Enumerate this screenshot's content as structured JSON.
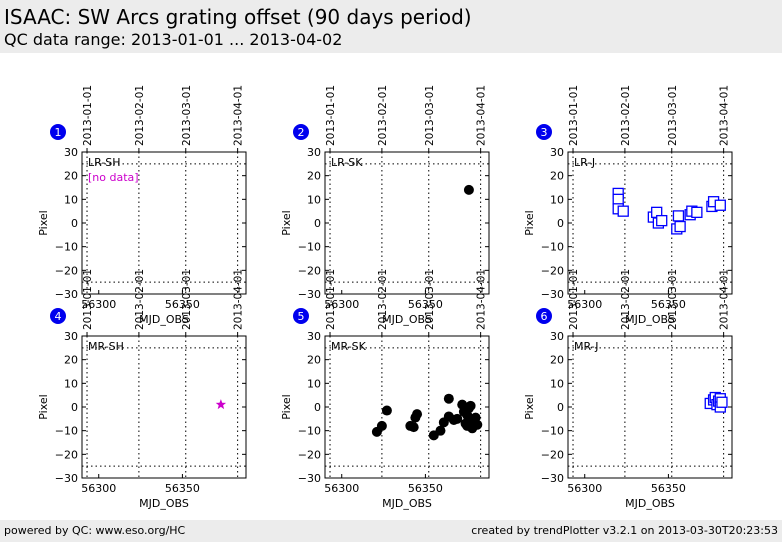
{
  "header": {
    "title": "ISAAC: SW Arcs grating offset (90 days period)",
    "subtitle": "QC data range: 2013-01-01 ... 2013-04-02"
  },
  "footer": {
    "left": "powered by QC: www.eso.org/HC",
    "right": "created by trendPlotter v3.2.1 on 2013-03-30T20:23:53"
  },
  "colors": {
    "black": "#000000",
    "blue": "#0000ff",
    "magenta": "#cc00cc",
    "badge": "#0000ee"
  },
  "chart_data": [
    {
      "type": "scatter",
      "panel_number": "1",
      "label": "LR-SH",
      "note": "[no data]",
      "xlabel": "MJD_OBS",
      "ylabel": "Pixel",
      "xlim": [
        56290,
        56388
      ],
      "ylim": [
        -30,
        30
      ],
      "xticks": [
        56300,
        56350
      ],
      "yticks": [
        -30,
        -20,
        -10,
        0,
        10,
        20,
        30
      ],
      "ref_lines": [
        -25,
        25
      ],
      "date_ticks": [
        {
          "x": 56293,
          "label": "2013-01-01"
        },
        {
          "x": 56324,
          "label": "2013-02-01"
        },
        {
          "x": 56352,
          "label": "2013-03-01"
        },
        {
          "x": 56383,
          "label": "2013-04-01"
        }
      ],
      "marker": "none",
      "points": []
    },
    {
      "type": "scatter",
      "panel_number": "2",
      "label": "LR-SK",
      "xlabel": "MJD_OBS",
      "ylabel": "Pixel",
      "xlim": [
        56290,
        56388
      ],
      "ylim": [
        -30,
        30
      ],
      "xticks": [
        56300,
        56350
      ],
      "yticks": [
        -30,
        -20,
        -10,
        0,
        10,
        20,
        30
      ],
      "ref_lines": [
        -25,
        25
      ],
      "date_ticks": [
        {
          "x": 56293,
          "label": "2013-01-01"
        },
        {
          "x": 56324,
          "label": "2013-02-01"
        },
        {
          "x": 56352,
          "label": "2013-03-01"
        },
        {
          "x": 56383,
          "label": "2013-04-01"
        }
      ],
      "marker": "circle",
      "color": "#000000",
      "points": [
        [
          56376,
          14
        ]
      ]
    },
    {
      "type": "scatter",
      "panel_number": "3",
      "label": "LR-J",
      "xlabel": "MJD_OBS",
      "ylabel": "Pixel",
      "xlim": [
        56290,
        56388
      ],
      "ylim": [
        -30,
        30
      ],
      "xticks": [
        56300,
        56350
      ],
      "yticks": [
        -30,
        -20,
        -10,
        0,
        10,
        20,
        30
      ],
      "ref_lines": [
        -25,
        25
      ],
      "date_ticks": [
        {
          "x": 56293,
          "label": "2013-01-01"
        },
        {
          "x": 56324,
          "label": "2013-02-01"
        },
        {
          "x": 56352,
          "label": "2013-03-01"
        },
        {
          "x": 56383,
          "label": "2013-04-01"
        }
      ],
      "marker": "square",
      "color": "#0000ff",
      "points": [
        [
          56320,
          12.5
        ],
        [
          56320,
          10
        ],
        [
          56320,
          6
        ],
        [
          56323,
          5
        ],
        [
          56341,
          2.5
        ],
        [
          56343,
          4.5
        ],
        [
          56344,
          0
        ],
        [
          56346,
          1
        ],
        [
          56355,
          -2.5
        ],
        [
          56356,
          3
        ],
        [
          56357,
          -1.5
        ],
        [
          56363,
          3.5
        ],
        [
          56364,
          5
        ],
        [
          56367,
          4.5
        ],
        [
          56376,
          7
        ],
        [
          56377,
          9
        ],
        [
          56381,
          7.5
        ]
      ]
    },
    {
      "type": "scatter",
      "panel_number": "4",
      "label": "MR-SH",
      "xlabel": "MJD_OBS",
      "ylabel": "Pixel",
      "xlim": [
        56290,
        56388
      ],
      "ylim": [
        -30,
        30
      ],
      "xticks": [
        56300,
        56350
      ],
      "yticks": [
        -30,
        -20,
        -10,
        0,
        10,
        20,
        30
      ],
      "ref_lines": [
        -25,
        25
      ],
      "date_ticks": [
        {
          "x": 56293,
          "label": "2013-01-01"
        },
        {
          "x": 56324,
          "label": "2013-02-01"
        },
        {
          "x": 56352,
          "label": "2013-03-01"
        },
        {
          "x": 56383,
          "label": "2013-04-01"
        }
      ],
      "marker": "star",
      "color": "#cc00cc",
      "points": [
        [
          56373,
          1
        ]
      ]
    },
    {
      "type": "scatter",
      "panel_number": "5",
      "label": "MR-SK",
      "xlabel": "MJD_OBS",
      "ylabel": "Pixel",
      "xlim": [
        56290,
        56388
      ],
      "ylim": [
        -30,
        30
      ],
      "xticks": [
        56300,
        56350
      ],
      "yticks": [
        -30,
        -20,
        -10,
        0,
        10,
        20,
        30
      ],
      "ref_lines": [
        -25,
        25
      ],
      "date_ticks": [
        {
          "x": 56293,
          "label": "2013-01-01"
        },
        {
          "x": 56324,
          "label": "2013-02-01"
        },
        {
          "x": 56352,
          "label": "2013-03-01"
        },
        {
          "x": 56383,
          "label": "2013-04-01"
        }
      ],
      "marker": "circle",
      "color": "#000000",
      "points": [
        [
          56321,
          -10.5
        ],
        [
          56324,
          -8
        ],
        [
          56327,
          -1.5
        ],
        [
          56341,
          -8
        ],
        [
          56343,
          -8.5
        ],
        [
          56344,
          -4.5
        ],
        [
          56345,
          -3
        ],
        [
          56355,
          -12
        ],
        [
          56359,
          -10
        ],
        [
          56361,
          -6.5
        ],
        [
          56364,
          3.5
        ],
        [
          56364,
          -4
        ],
        [
          56367,
          -5.5
        ],
        [
          56369,
          -5
        ],
        [
          56372,
          1
        ],
        [
          56373,
          -2
        ],
        [
          56374,
          -7
        ],
        [
          56375,
          -3.5
        ],
        [
          56376,
          -0.5
        ],
        [
          56377,
          -5
        ],
        [
          56378,
          -9
        ],
        [
          56379,
          -6
        ],
        [
          56380,
          -4.5
        ],
        [
          56381,
          -7.5
        ],
        [
          56375,
          -8
        ],
        [
          56377,
          0.5
        ]
      ]
    },
    {
      "type": "scatter",
      "panel_number": "6",
      "label": "MR-J",
      "xlabel": "MJD_OBS",
      "ylabel": "Pixel",
      "xlim": [
        56290,
        56388
      ],
      "ylim": [
        -30,
        30
      ],
      "xticks": [
        56300,
        56350
      ],
      "yticks": [
        -30,
        -20,
        -10,
        0,
        10,
        20,
        30
      ],
      "ref_lines": [
        -25,
        25
      ],
      "date_ticks": [
        {
          "x": 56293,
          "label": "2013-01-01"
        },
        {
          "x": 56324,
          "label": "2013-02-01"
        },
        {
          "x": 56352,
          "label": "2013-03-01"
        },
        {
          "x": 56383,
          "label": "2013-04-01"
        }
      ],
      "marker": "square",
      "color": "#0000ff",
      "points": [
        [
          56375,
          1.5
        ],
        [
          56377,
          3
        ],
        [
          56378,
          4
        ],
        [
          56379,
          1
        ],
        [
          56380,
          2.5
        ],
        [
          56381,
          3.5
        ],
        [
          56381,
          0
        ],
        [
          56382,
          2
        ]
      ]
    }
  ]
}
